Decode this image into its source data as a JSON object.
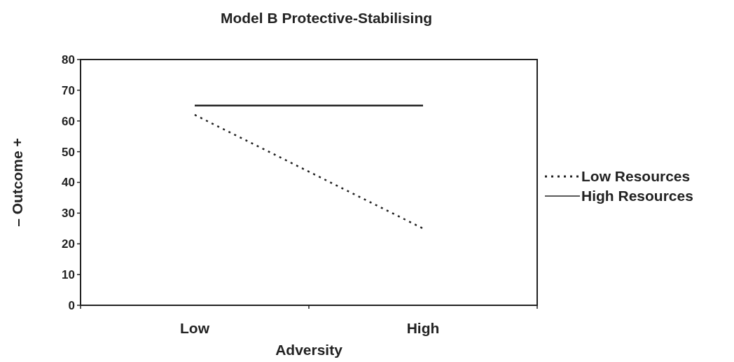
{
  "chart_data": {
    "type": "line",
    "title": "Model B Protective-Stabilising",
    "xlabel": "Adversity",
    "ylabel": "– Outcome +",
    "categories": [
      "Low",
      "High"
    ],
    "series": [
      {
        "name": "Low Resources",
        "color": "#222222",
        "values": [
          62,
          25
        ],
        "line_style": "dotted"
      },
      {
        "name": "High Resources",
        "color": "#222222",
        "values": [
          65,
          65
        ],
        "line_style": "solid"
      }
    ],
    "ylim": [
      0,
      80
    ],
    "yticks": [
      0,
      10,
      20,
      30,
      40,
      50,
      60,
      70,
      80
    ],
    "grid": false,
    "legend": "right",
    "marker": "none"
  }
}
